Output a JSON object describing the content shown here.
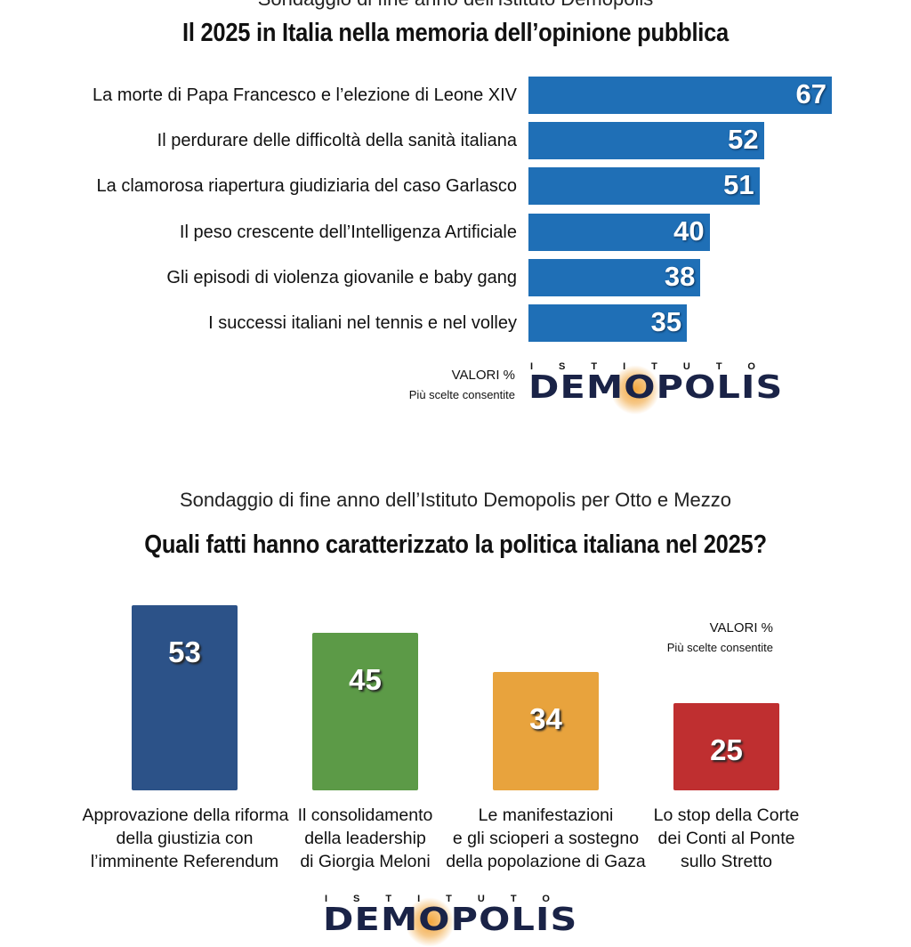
{
  "chart_data": [
    {
      "type": "bar",
      "orientation": "horizontal",
      "subtitle": "Sondaggio di fine anno dell'Istituto Demopolis",
      "title": "Il 2025 in Italia nella memoria dell’opinione pubblica",
      "categories": [
        "La morte di Papa Francesco e l’elezione di Leone XIV",
        "Il perdurare delle difficoltà della sanità italiana",
        "La clamorosa riapertura giudiziaria del caso Garlasco",
        "Il peso crescente dell’Intelligenza Artificiale",
        "Gli episodi di violenza giovanile e baby gang",
        "I successi italiani nel tennis e nel volley"
      ],
      "values": [
        67,
        52,
        51,
        40,
        38,
        35
      ],
      "color": "#1f6fb6",
      "note": "VALORI %",
      "note2": "Più scelte consentite",
      "logo_top": "ISTITUTO",
      "logo": "DEMOPOLIS"
    },
    {
      "type": "bar",
      "orientation": "vertical",
      "subtitle": "Sondaggio di fine anno dell’Istituto Demopolis per Otto e Mezzo",
      "title": "Quali fatti hanno caratterizzato la politica italiana nel 2025?",
      "categories": [
        [
          "Approvazione della riforma",
          "della giustizia con",
          "l’imminente Referendum"
        ],
        [
          "Il consolidamento",
          "della leadership",
          "di Giorgia Meloni"
        ],
        [
          "Le manifestazioni",
          "e gli scioperi a sostegno",
          "della popolazione di Gaza"
        ],
        [
          "Lo stop della Corte",
          "dei Conti al Ponte",
          "sullo Stretto"
        ]
      ],
      "values": [
        53,
        45,
        34,
        25
      ],
      "colors": [
        "#2c5288",
        "#5c9a47",
        "#e8a33d",
        "#bf2f30"
      ],
      "note": "VALORI %",
      "note2": "Più scelte consentite",
      "logo_top": "ISTITUTO",
      "logo": "DEMOPOLIS"
    }
  ]
}
